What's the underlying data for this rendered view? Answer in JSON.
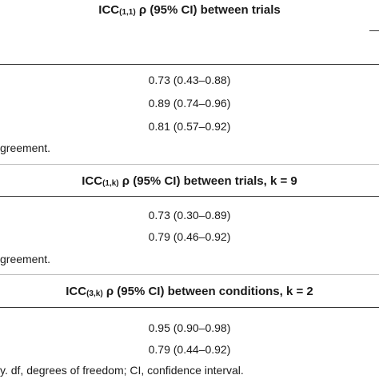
{
  "tables": [
    {
      "header": {
        "prefix": "ICC",
        "subscript": "(1,1)",
        "suffix": " ρ (95% CI) between trials"
      },
      "values": [
        "0.73 (0.43–0.88)",
        "0.89 (0.74–0.96)",
        "0.81 (0.57–0.92)"
      ],
      "footnote": "greement."
    },
    {
      "header": {
        "prefix": "ICC",
        "subscript": "(1,k)",
        "suffix": " ρ (95% CI) between trials, k = 9"
      },
      "values": [
        "0.73 (0.30–0.89)",
        "0.79 (0.46–0.92)"
      ],
      "footnote": "greement."
    },
    {
      "header": {
        "prefix": "ICC",
        "subscript": "(3,k)",
        "suffix": " ρ (95% CI) between conditions, k = 2"
      },
      "values": [
        "0.95 (0.90–0.98)",
        "0.79 (0.44–0.92)"
      ],
      "footnote": "y. df, degrees of freedom; CI, confidence interval."
    }
  ]
}
